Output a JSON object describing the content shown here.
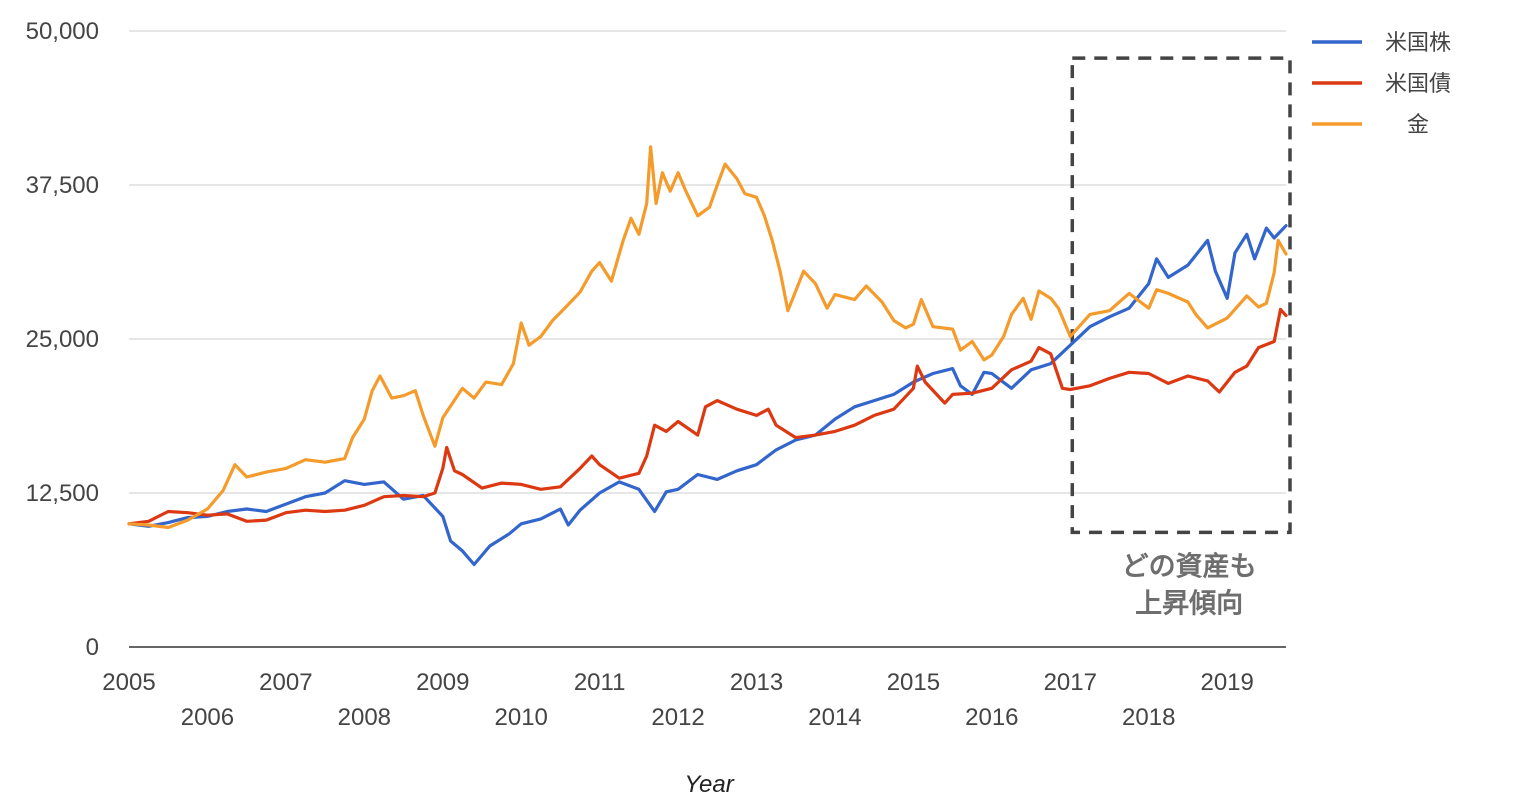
{
  "chart_data": {
    "type": "line",
    "title": "",
    "xlabel": "Year",
    "ylabel": "",
    "xlim": [
      2005,
      2019.75
    ],
    "ylim": [
      0,
      50000
    ],
    "y_ticks": [
      "0",
      "12,500",
      "25,000",
      "37,500",
      "50,000"
    ],
    "y_tick_values": [
      0,
      12500,
      25000,
      37500,
      50000
    ],
    "x_ticks": [
      "2005",
      "2006",
      "2007",
      "2008",
      "2009",
      "2010",
      "2011",
      "2012",
      "2013",
      "2014",
      "2015",
      "2016",
      "2017",
      "2018",
      "2019"
    ],
    "x_tick_values": [
      2005,
      2006,
      2007,
      2008,
      2009,
      2010,
      2011,
      2012,
      2013,
      2014,
      2015,
      2016,
      2017,
      2018,
      2019
    ],
    "grid": true,
    "legend_position": "top-right",
    "annotation": {
      "lines": [
        "どの資産も",
        "上昇傾向"
      ],
      "x_range": [
        2017.0,
        2019.75
      ],
      "y_range": [
        9300,
        47800
      ]
    },
    "series": [
      {
        "name": "米国株",
        "color": "#3366cc",
        "points": [
          [
            2005.0,
            10000
          ],
          [
            2005.25,
            9800
          ],
          [
            2005.5,
            10100
          ],
          [
            2005.75,
            10500
          ],
          [
            2006.0,
            10600
          ],
          [
            2006.25,
            11000
          ],
          [
            2006.5,
            11200
          ],
          [
            2006.75,
            11000
          ],
          [
            2007.0,
            11600
          ],
          [
            2007.25,
            12200
          ],
          [
            2007.5,
            12500
          ],
          [
            2007.75,
            13500
          ],
          [
            2008.0,
            13200
          ],
          [
            2008.25,
            13400
          ],
          [
            2008.5,
            12000
          ],
          [
            2008.75,
            12300
          ],
          [
            2009.0,
            10600
          ],
          [
            2009.1,
            8600
          ],
          [
            2009.25,
            7800
          ],
          [
            2009.4,
            6700
          ],
          [
            2009.6,
            8200
          ],
          [
            2009.85,
            9200
          ],
          [
            2010.0,
            10000
          ],
          [
            2010.25,
            10400
          ],
          [
            2010.5,
            11200
          ],
          [
            2010.6,
            9900
          ],
          [
            2010.75,
            11100
          ],
          [
            2011.0,
            12500
          ],
          [
            2011.25,
            13400
          ],
          [
            2011.5,
            12800
          ],
          [
            2011.7,
            11000
          ],
          [
            2011.85,
            12600
          ],
          [
            2012.0,
            12800
          ],
          [
            2012.25,
            14000
          ],
          [
            2012.5,
            13600
          ],
          [
            2012.75,
            14300
          ],
          [
            2013.0,
            14800
          ],
          [
            2013.25,
            16000
          ],
          [
            2013.5,
            16800
          ],
          [
            2013.75,
            17200
          ],
          [
            2014.0,
            18500
          ],
          [
            2014.25,
            19500
          ],
          [
            2014.5,
            20000
          ],
          [
            2014.75,
            20500
          ],
          [
            2015.0,
            21500
          ],
          [
            2015.25,
            22200
          ],
          [
            2015.5,
            22600
          ],
          [
            2015.6,
            21200
          ],
          [
            2015.75,
            20500
          ],
          [
            2015.9,
            22300
          ],
          [
            2016.0,
            22200
          ],
          [
            2016.25,
            21000
          ],
          [
            2016.5,
            22500
          ],
          [
            2016.75,
            23000
          ],
          [
            2017.0,
            24500
          ],
          [
            2017.25,
            26000
          ],
          [
            2017.5,
            26800
          ],
          [
            2017.75,
            27500
          ],
          [
            2018.0,
            29500
          ],
          [
            2018.1,
            31500
          ],
          [
            2018.25,
            30000
          ],
          [
            2018.5,
            31000
          ],
          [
            2018.75,
            33000
          ],
          [
            2018.85,
            30500
          ],
          [
            2019.0,
            28300
          ],
          [
            2019.1,
            32000
          ],
          [
            2019.25,
            33500
          ],
          [
            2019.35,
            31500
          ],
          [
            2019.5,
            34000
          ],
          [
            2019.6,
            33200
          ],
          [
            2019.75,
            34200
          ]
        ]
      },
      {
        "name": "米国債",
        "color": "#dc3912",
        "points": [
          [
            2005.0,
            10000
          ],
          [
            2005.25,
            10200
          ],
          [
            2005.5,
            11000
          ],
          [
            2005.75,
            10900
          ],
          [
            2006.0,
            10700
          ],
          [
            2006.25,
            10800
          ],
          [
            2006.5,
            10200
          ],
          [
            2006.75,
            10300
          ],
          [
            2007.0,
            10900
          ],
          [
            2007.25,
            11100
          ],
          [
            2007.5,
            11000
          ],
          [
            2007.75,
            11100
          ],
          [
            2008.0,
            11500
          ],
          [
            2008.25,
            12200
          ],
          [
            2008.5,
            12300
          ],
          [
            2008.75,
            12200
          ],
          [
            2008.9,
            12500
          ],
          [
            2009.0,
            14500
          ],
          [
            2009.05,
            16200
          ],
          [
            2009.15,
            14300
          ],
          [
            2009.25,
            14000
          ],
          [
            2009.5,
            12900
          ],
          [
            2009.75,
            13300
          ],
          [
            2010.0,
            13200
          ],
          [
            2010.25,
            12800
          ],
          [
            2010.5,
            13000
          ],
          [
            2010.75,
            14500
          ],
          [
            2010.9,
            15500
          ],
          [
            2011.0,
            14800
          ],
          [
            2011.25,
            13700
          ],
          [
            2011.5,
            14100
          ],
          [
            2011.6,
            15500
          ],
          [
            2011.7,
            18000
          ],
          [
            2011.85,
            17500
          ],
          [
            2012.0,
            18300
          ],
          [
            2012.25,
            17200
          ],
          [
            2012.35,
            19500
          ],
          [
            2012.5,
            20000
          ],
          [
            2012.75,
            19300
          ],
          [
            2013.0,
            18800
          ],
          [
            2013.15,
            19300
          ],
          [
            2013.25,
            18000
          ],
          [
            2013.5,
            17000
          ],
          [
            2013.75,
            17200
          ],
          [
            2014.0,
            17500
          ],
          [
            2014.25,
            18000
          ],
          [
            2014.5,
            18800
          ],
          [
            2014.75,
            19300
          ],
          [
            2015.0,
            21000
          ],
          [
            2015.05,
            22800
          ],
          [
            2015.15,
            21500
          ],
          [
            2015.4,
            19800
          ],
          [
            2015.5,
            20500
          ],
          [
            2015.75,
            20600
          ],
          [
            2016.0,
            21000
          ],
          [
            2016.25,
            22500
          ],
          [
            2016.5,
            23200
          ],
          [
            2016.6,
            24300
          ],
          [
            2016.75,
            23800
          ],
          [
            2016.9,
            21000
          ],
          [
            2017.0,
            20900
          ],
          [
            2017.25,
            21200
          ],
          [
            2017.5,
            21800
          ],
          [
            2017.75,
            22300
          ],
          [
            2018.0,
            22200
          ],
          [
            2018.25,
            21400
          ],
          [
            2018.5,
            22000
          ],
          [
            2018.75,
            21600
          ],
          [
            2018.9,
            20700
          ],
          [
            2019.0,
            21500
          ],
          [
            2019.1,
            22300
          ],
          [
            2019.25,
            22800
          ],
          [
            2019.4,
            24300
          ],
          [
            2019.6,
            24800
          ],
          [
            2019.68,
            27400
          ],
          [
            2019.75,
            26900
          ]
        ]
      },
      {
        "name": "金",
        "color": "#f59b2b",
        "points": [
          [
            2005.0,
            10000
          ],
          [
            2005.25,
            9900
          ],
          [
            2005.5,
            9700
          ],
          [
            2005.75,
            10300
          ],
          [
            2006.0,
            11200
          ],
          [
            2006.2,
            12700
          ],
          [
            2006.35,
            14800
          ],
          [
            2006.5,
            13800
          ],
          [
            2006.75,
            14200
          ],
          [
            2007.0,
            14500
          ],
          [
            2007.25,
            15200
          ],
          [
            2007.5,
            15000
          ],
          [
            2007.75,
            15300
          ],
          [
            2007.85,
            17000
          ],
          [
            2008.0,
            18500
          ],
          [
            2008.1,
            20800
          ],
          [
            2008.2,
            22000
          ],
          [
            2008.35,
            20200
          ],
          [
            2008.5,
            20400
          ],
          [
            2008.65,
            20800
          ],
          [
            2008.75,
            18800
          ],
          [
            2008.9,
            16300
          ],
          [
            2009.0,
            18600
          ],
          [
            2009.25,
            21000
          ],
          [
            2009.4,
            20200
          ],
          [
            2009.55,
            21500
          ],
          [
            2009.75,
            21300
          ],
          [
            2009.9,
            23000
          ],
          [
            2010.0,
            26300
          ],
          [
            2010.1,
            24500
          ],
          [
            2010.25,
            25200
          ],
          [
            2010.4,
            26500
          ],
          [
            2010.6,
            27800
          ],
          [
            2010.75,
            28800
          ],
          [
            2010.9,
            30500
          ],
          [
            2011.0,
            31200
          ],
          [
            2011.15,
            29700
          ],
          [
            2011.3,
            33000
          ],
          [
            2011.4,
            34800
          ],
          [
            2011.5,
            33500
          ],
          [
            2011.6,
            36000
          ],
          [
            2011.65,
            40600
          ],
          [
            2011.72,
            36000
          ],
          [
            2011.8,
            38500
          ],
          [
            2011.9,
            37000
          ],
          [
            2012.0,
            38500
          ],
          [
            2012.1,
            37000
          ],
          [
            2012.25,
            35000
          ],
          [
            2012.4,
            35700
          ],
          [
            2012.5,
            37500
          ],
          [
            2012.6,
            39200
          ],
          [
            2012.75,
            38000
          ],
          [
            2012.85,
            36800
          ],
          [
            2013.0,
            36500
          ],
          [
            2013.1,
            35000
          ],
          [
            2013.2,
            33000
          ],
          [
            2013.3,
            30500
          ],
          [
            2013.4,
            27300
          ],
          [
            2013.6,
            30500
          ],
          [
            2013.75,
            29500
          ],
          [
            2013.9,
            27500
          ],
          [
            2014.0,
            28600
          ],
          [
            2014.25,
            28200
          ],
          [
            2014.4,
            29300
          ],
          [
            2014.6,
            28000
          ],
          [
            2014.75,
            26500
          ],
          [
            2014.9,
            25900
          ],
          [
            2015.0,
            26200
          ],
          [
            2015.1,
            28200
          ],
          [
            2015.25,
            26000
          ],
          [
            2015.5,
            25800
          ],
          [
            2015.6,
            24100
          ],
          [
            2015.75,
            24800
          ],
          [
            2015.9,
            23300
          ],
          [
            2016.0,
            23700
          ],
          [
            2016.15,
            25200
          ],
          [
            2016.25,
            27000
          ],
          [
            2016.4,
            28300
          ],
          [
            2016.5,
            26600
          ],
          [
            2016.6,
            28900
          ],
          [
            2016.75,
            28300
          ],
          [
            2016.85,
            27500
          ],
          [
            2017.0,
            25200
          ],
          [
            2017.25,
            27000
          ],
          [
            2017.5,
            27300
          ],
          [
            2017.75,
            28700
          ],
          [
            2018.0,
            27500
          ],
          [
            2018.1,
            29000
          ],
          [
            2018.25,
            28700
          ],
          [
            2018.5,
            28000
          ],
          [
            2018.6,
            27000
          ],
          [
            2018.75,
            25900
          ],
          [
            2019.0,
            26700
          ],
          [
            2019.25,
            28500
          ],
          [
            2019.4,
            27600
          ],
          [
            2019.5,
            27900
          ],
          [
            2019.6,
            30400
          ],
          [
            2019.65,
            33000
          ],
          [
            2019.75,
            31900
          ]
        ]
      }
    ]
  }
}
